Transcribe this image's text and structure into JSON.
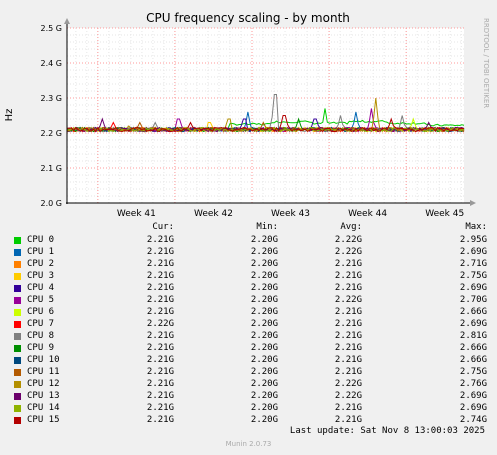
{
  "chart_data": {
    "type": "line",
    "title": "CPU frequency scaling - by month",
    "ylabel": "Hz",
    "ylim": [
      2.0,
      2.5
    ],
    "y_ticks": [
      "2.0 G",
      "2.1 G",
      "2.2 G",
      "2.3 G",
      "2.4 G",
      "2.5 G"
    ],
    "x_ticks": [
      "Week 41",
      "Week 42",
      "Week 43",
      "Week 44",
      "Week 45"
    ],
    "grid": true,
    "watermark": "RRDTOOL / TOBI OETIKER",
    "baseline_ghz": 2.21,
    "spikes": [
      {
        "series": "CPU 13",
        "week": 41.05,
        "value": 2.24
      },
      {
        "series": "CPU 7",
        "week": 41.2,
        "value": 2.23
      },
      {
        "series": "CPU 12",
        "week": 41.4,
        "value": 2.22
      },
      {
        "series": "CPU 11",
        "week": 41.55,
        "value": 2.23
      },
      {
        "series": "CPU 8",
        "week": 41.75,
        "value": 2.23
      },
      {
        "series": "CPU 5",
        "week": 42.05,
        "value": 2.24
      },
      {
        "series": "CPU 15",
        "week": 42.2,
        "value": 2.23
      },
      {
        "series": "CPU 3",
        "week": 42.45,
        "value": 2.23
      },
      {
        "series": "CPU 12",
        "week": 42.7,
        "value": 2.24
      },
      {
        "series": "CPU 4",
        "week": 42.9,
        "value": 2.24
      },
      {
        "series": "CPU 1",
        "week": 42.95,
        "value": 2.26
      },
      {
        "series": "CPU 11",
        "week": 43.15,
        "value": 2.23
      },
      {
        "series": "CPU 8",
        "week": 43.3,
        "value": 2.31
      },
      {
        "series": "CPU 15",
        "week": 43.42,
        "value": 2.25
      },
      {
        "series": "CPU 9",
        "week": 43.6,
        "value": 2.24
      },
      {
        "series": "CPU 4",
        "week": 43.82,
        "value": 2.24
      },
      {
        "series": "CPU 0",
        "week": 43.95,
        "value": 2.27
      },
      {
        "series": "CPU 8",
        "week": 44.15,
        "value": 2.25
      },
      {
        "series": "CPU 1",
        "week": 44.35,
        "value": 2.26
      },
      {
        "series": "CPU 5",
        "week": 44.55,
        "value": 2.27
      },
      {
        "series": "CPU 12",
        "week": 44.6,
        "value": 2.3
      },
      {
        "series": "CPU 15",
        "week": 44.8,
        "value": 2.24
      },
      {
        "series": "CPU 8",
        "week": 44.95,
        "value": 2.25
      },
      {
        "series": "CPU 6",
        "week": 45.1,
        "value": 2.24
      },
      {
        "series": "CPU 13",
        "week": 45.3,
        "value": 2.23
      }
    ],
    "drift": [
      {
        "series": "CPU 0",
        "week": 43.0,
        "value": 2.225
      },
      {
        "series": "CPU 0",
        "week": 43.5,
        "value": 2.232
      },
      {
        "series": "CPU 0",
        "week": 44.0,
        "value": 2.228
      },
      {
        "series": "CPU 0",
        "week": 44.5,
        "value": 2.233
      },
      {
        "series": "CPU 0",
        "week": 45.0,
        "value": 2.228
      },
      {
        "series": "CPU 0",
        "week": 45.5,
        "value": 2.222
      }
    ],
    "series": [
      {
        "name": "CPU 0",
        "color": "#00cc00",
        "cur": "2.21G",
        "min": "2.20G",
        "avg": "2.22G",
        "max": "2.95G"
      },
      {
        "name": "CPU 1",
        "color": "#0066b3",
        "cur": "2.21G",
        "min": "2.20G",
        "avg": "2.22G",
        "max": "2.69G"
      },
      {
        "name": "CPU 2",
        "color": "#ff8000",
        "cur": "2.21G",
        "min": "2.20G",
        "avg": "2.21G",
        "max": "2.71G"
      },
      {
        "name": "CPU 3",
        "color": "#ffcc00",
        "cur": "2.21G",
        "min": "2.20G",
        "avg": "2.21G",
        "max": "2.75G"
      },
      {
        "name": "CPU 4",
        "color": "#330099",
        "cur": "2.21G",
        "min": "2.20G",
        "avg": "2.21G",
        "max": "2.69G"
      },
      {
        "name": "CPU 5",
        "color": "#990099",
        "cur": "2.21G",
        "min": "2.20G",
        "avg": "2.22G",
        "max": "2.70G"
      },
      {
        "name": "CPU 6",
        "color": "#ccff00",
        "cur": "2.21G",
        "min": "2.20G",
        "avg": "2.21G",
        "max": "2.66G"
      },
      {
        "name": "CPU 7",
        "color": "#ff0000",
        "cur": "2.22G",
        "min": "2.20G",
        "avg": "2.21G",
        "max": "2.69G"
      },
      {
        "name": "CPU 8",
        "color": "#808080",
        "cur": "2.21G",
        "min": "2.20G",
        "avg": "2.21G",
        "max": "2.81G"
      },
      {
        "name": "CPU 9",
        "color": "#008f00",
        "cur": "2.21G",
        "min": "2.20G",
        "avg": "2.21G",
        "max": "2.66G"
      },
      {
        "name": "CPU 10",
        "color": "#00487d",
        "cur": "2.21G",
        "min": "2.20G",
        "avg": "2.21G",
        "max": "2.66G"
      },
      {
        "name": "CPU 11",
        "color": "#b35a00",
        "cur": "2.21G",
        "min": "2.20G",
        "avg": "2.21G",
        "max": "2.75G"
      },
      {
        "name": "CPU 12",
        "color": "#b38f00",
        "cur": "2.21G",
        "min": "2.20G",
        "avg": "2.22G",
        "max": "2.76G"
      },
      {
        "name": "CPU 13",
        "color": "#6b006b",
        "cur": "2.21G",
        "min": "2.20G",
        "avg": "2.22G",
        "max": "2.69G"
      },
      {
        "name": "CPU 14",
        "color": "#8fb300",
        "cur": "2.21G",
        "min": "2.20G",
        "avg": "2.21G",
        "max": "2.69G"
      },
      {
        "name": "CPU 15",
        "color": "#b30000",
        "cur": "2.21G",
        "min": "2.20G",
        "avg": "2.21G",
        "max": "2.74G"
      }
    ]
  },
  "legend": {
    "cur_label": "Cur:",
    "min_label": "Min:",
    "avg_label": "Avg:",
    "max_label": "Max:"
  },
  "footer": {
    "last_update": "Last update: Sat Nov  8 13:00:03 2025",
    "version": "Munin 2.0.73"
  }
}
